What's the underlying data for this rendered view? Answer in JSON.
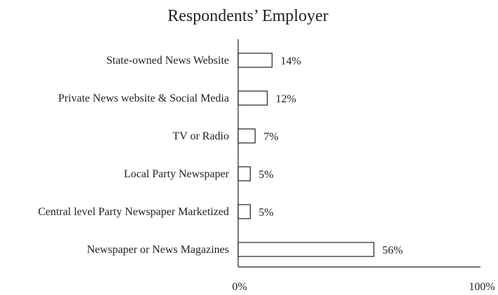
{
  "chart_data": {
    "type": "bar",
    "orientation": "horizontal",
    "title": "Respondents’ Employer",
    "xlabel": "",
    "ylabel": "",
    "xlim": [
      0,
      100
    ],
    "x_ticks": [
      "0%",
      "100%"
    ],
    "grid": false,
    "legend": "none",
    "categories": [
      "State-owned News Website",
      "Private News website & Social Media",
      "TV or Radio",
      "Local Party Newspaper",
      "Central level Party Newspaper Marketized",
      "Newspaper or News Magazines"
    ],
    "values": [
      14,
      12,
      7,
      5,
      5,
      56
    ],
    "value_labels": [
      "14%",
      "12%",
      "7%",
      "5%",
      "5%",
      "56%"
    ],
    "colors": {
      "bar_fill": "#ffffff",
      "bar_stroke": "#222222",
      "axis": "#222222",
      "text": "#222222"
    }
  }
}
